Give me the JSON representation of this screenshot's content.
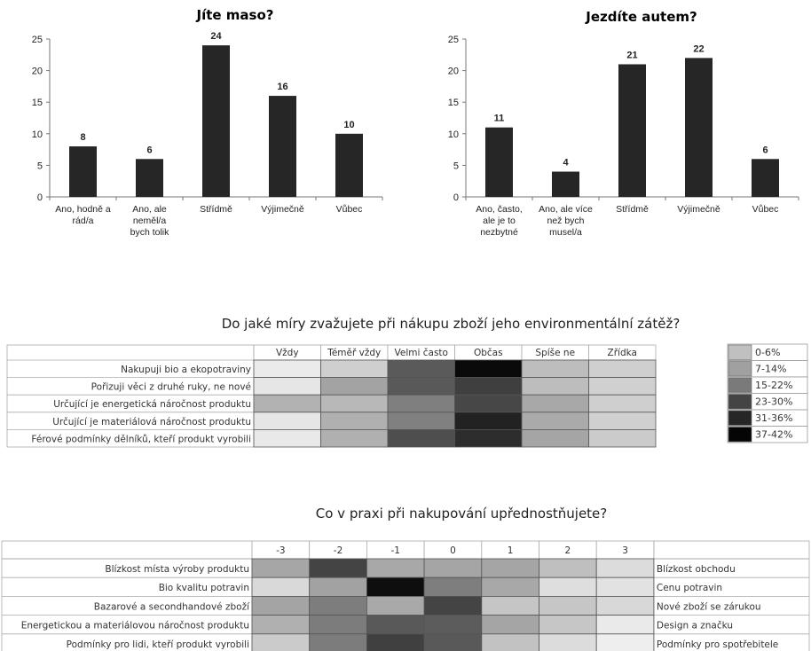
{
  "chart_data": [
    {
      "type": "bar",
      "title": "Jíte maso?",
      "categories": [
        [
          "Ano, hodně a",
          "rád/a"
        ],
        [
          "Ano, ale",
          "neměl/a",
          "bych tolik"
        ],
        [
          "Střídmě"
        ],
        [
          "Výjimečně"
        ],
        [
          "Vůbec"
        ]
      ],
      "values": [
        8,
        6,
        24,
        16,
        10
      ],
      "ylim": [
        0,
        25
      ],
      "yticks": [
        0,
        5,
        10,
        15,
        20,
        25
      ],
      "grid": false,
      "bar_color": "#262626"
    },
    {
      "type": "bar",
      "title": "Jezdíte autem?",
      "categories": [
        [
          "Ano, často,",
          "ale je to",
          "nezbytné"
        ],
        [
          "Ano, ale více",
          "než bych",
          "musel/a"
        ],
        [
          "Střídmě"
        ],
        [
          "Výjimečně"
        ],
        [
          "Vůbec"
        ]
      ],
      "values": [
        11,
        4,
        21,
        22,
        6
      ],
      "ylim": [
        0,
        25
      ],
      "yticks": [
        0,
        5,
        10,
        15,
        20,
        25
      ],
      "grid": false,
      "bar_color": "#262626"
    },
    {
      "type": "heatmap",
      "title": "Do jaké míry zvažujete při nákupu zboží jeho environmentální zátěž?",
      "columns": [
        "Vždy",
        "Téměř vždy",
        "Velmi často",
        "Občas",
        "Spíše ne",
        "Zřídka"
      ],
      "rows": [
        "Nakupuji bio a ekopotraviny",
        "Pořizuji věci z druhé ruky, ne nové",
        "Určující je energetická náročnost produktu",
        "Určující je materiálová náročnost produktu",
        "Férové podmínky dělníků, kteří produkt vyrobili"
      ],
      "cell_colors": [
        [
          "#ebebeb",
          "#cfcfcf",
          "#5a5a5a",
          "#0a0a0a",
          "#bdbdbd",
          "#cfcfcf"
        ],
        [
          "#e6e6e6",
          "#a3a3a3",
          "#595959",
          "#3f3f3f",
          "#bdbdbd",
          "#d0d0d0"
        ],
        [
          "#b2b2b2",
          "#b8b8b8",
          "#7f7f7f",
          "#474747",
          "#a8a8a8",
          "#cfcfcf"
        ],
        [
          "#e6e6e6",
          "#b0b0b0",
          "#808080",
          "#222222",
          "#aaaaaa",
          "#d0d0d0"
        ],
        [
          "#e9e9e9",
          "#b0b0b0",
          "#4e4e4e",
          "#2d2d2d",
          "#a5a5a5",
          "#cbcbcb"
        ]
      ],
      "legend": {
        "position": "right",
        "items": [
          {
            "label": "0-6%",
            "color": "#c0c0c0"
          },
          {
            "label": "7-14%",
            "color": "#a0a0a0"
          },
          {
            "label": "15-22%",
            "color": "#7a7a7a"
          },
          {
            "label": "23-30%",
            "color": "#444444"
          },
          {
            "label": "31-36%",
            "color": "#262626"
          },
          {
            "label": "37-42%",
            "color": "#050505"
          }
        ]
      }
    },
    {
      "type": "heatmap",
      "title": "Co v praxi při nakupování upřednostňujete?",
      "columns": [
        "-3",
        "-2",
        "-1",
        "0",
        "1",
        "2",
        "3"
      ],
      "rows_left": [
        "Blízkost místa výroby produktu",
        "Bio kvalitu potravin",
        "Bazarové a secondhandové zboží",
        "Energetickou a materiálovou náročnost produktu",
        "Podmínky pro lidi, kteří produkt vyrobili"
      ],
      "rows_right": [
        "Blízkost obchodu",
        "Cenu potravin",
        "Nové zboží se zárukou",
        "Design a značku",
        "Podmínky pro spotřebitele"
      ],
      "cell_colors": [
        [
          "#a6a6a6",
          "#444444",
          "#a8a8a8",
          "#a5a5a5",
          "#a5a5a5",
          "#bfbfbf",
          "#dcdcdc"
        ],
        [
          "#d9d9d9",
          "#a2a2a2",
          "#0e0e0e",
          "#7e7e7e",
          "#a8a8a8",
          "#dedede",
          "#e2e2e2"
        ],
        [
          "#a4a4a4",
          "#7d7d7d",
          "#a9a9a9",
          "#444444",
          "#c5c5c5",
          "#c6c6c6",
          "#d8d8d8"
        ],
        [
          "#b0b0b0",
          "#7c7c7c",
          "#595959",
          "#5c5c5c",
          "#a5a5a5",
          "#c6c6c6",
          "#eaeaea"
        ],
        [
          "#cbcbcb",
          "#7c7c7c",
          "#404040",
          "#595959",
          "#c2c2c2",
          "#dcdcdc",
          "#eeeeee"
        ]
      ]
    }
  ]
}
